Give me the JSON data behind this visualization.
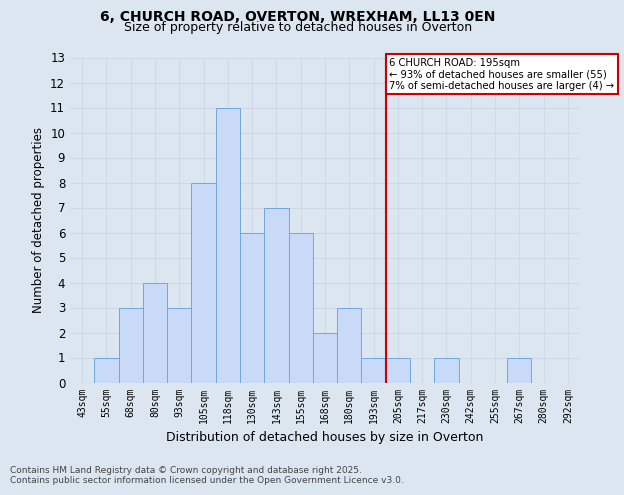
{
  "title1": "6, CHURCH ROAD, OVERTON, WREXHAM, LL13 0EN",
  "title2": "Size of property relative to detached houses in Overton",
  "xlabel": "Distribution of detached houses by size in Overton",
  "ylabel": "Number of detached properties",
  "categories": [
    "43sqm",
    "55sqm",
    "68sqm",
    "80sqm",
    "93sqm",
    "105sqm",
    "118sqm",
    "130sqm",
    "143sqm",
    "155sqm",
    "168sqm",
    "180sqm",
    "193sqm",
    "205sqm",
    "217sqm",
    "230sqm",
    "242sqm",
    "255sqm",
    "267sqm",
    "280sqm",
    "292sqm"
  ],
  "values": [
    0,
    1,
    3,
    4,
    3,
    8,
    11,
    6,
    7,
    6,
    2,
    3,
    1,
    1,
    0,
    1,
    0,
    0,
    1,
    0,
    0
  ],
  "bar_color": "#c9daf8",
  "bar_edge_color": "#6fa8dc",
  "grid_color": "#d0d8e8",
  "background_color": "#dce6f1",
  "ref_line_x": 12.5,
  "ref_line_color": "#cc0000",
  "annotation_text": "6 CHURCH ROAD: 195sqm\n← 93% of detached houses are smaller (55)\n7% of semi-detached houses are larger (4) →",
  "annotation_box_color": "#cc0000",
  "ylim": [
    0,
    13
  ],
  "yticks": [
    0,
    1,
    2,
    3,
    4,
    5,
    6,
    7,
    8,
    9,
    10,
    11,
    12,
    13
  ],
  "footer1": "Contains HM Land Registry data © Crown copyright and database right 2025.",
  "footer2": "Contains public sector information licensed under the Open Government Licence v3.0."
}
